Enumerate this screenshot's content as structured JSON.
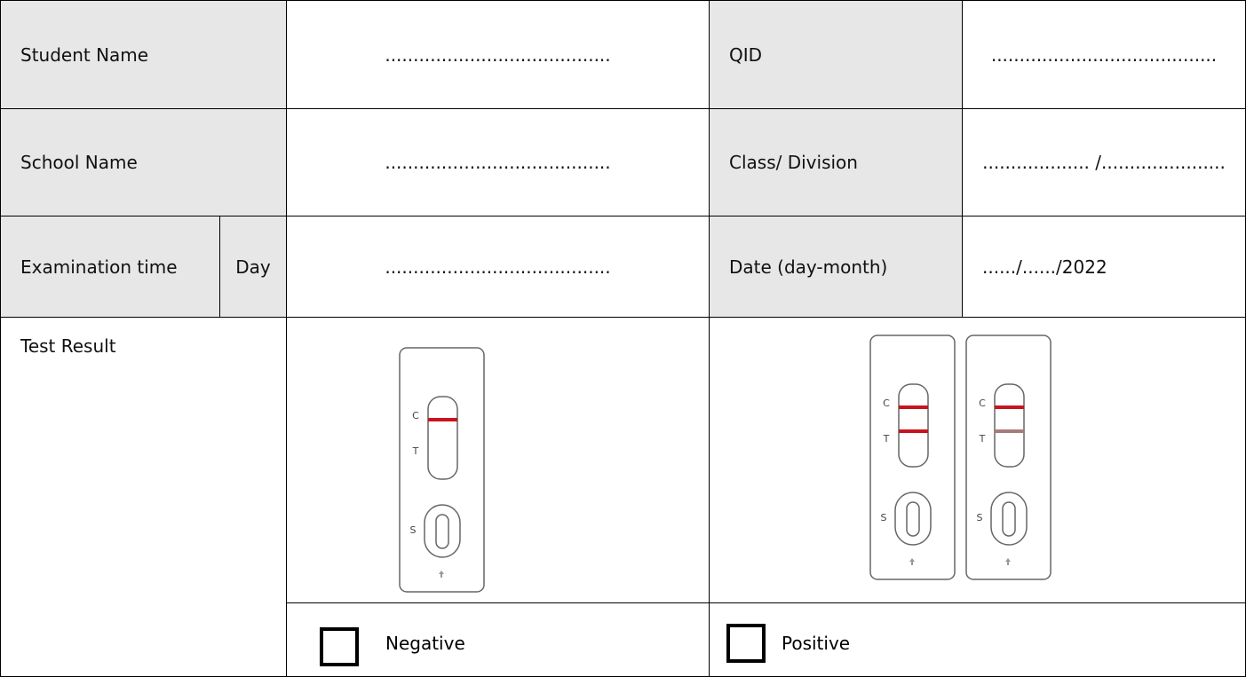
{
  "form": {
    "rows": [
      {
        "label": "Student Name",
        "value": "........................................",
        "label2": "QID",
        "value2": "........................................"
      },
      {
        "label": "School Name",
        "value": "........................................",
        "label2": "Class/ Division",
        "value2": "................... /......................"
      },
      {
        "label": "Examination time",
        "sublabel": "Day",
        "value": "........................................",
        "label2": "Date (day-month)",
        "value2": "....../....../2022"
      }
    ],
    "test_result": {
      "label": "Test Result",
      "strip_letters": {
        "control": "C",
        "test": "T",
        "sample": "S"
      },
      "negative": "Negative",
      "positive": "Positive"
    }
  }
}
